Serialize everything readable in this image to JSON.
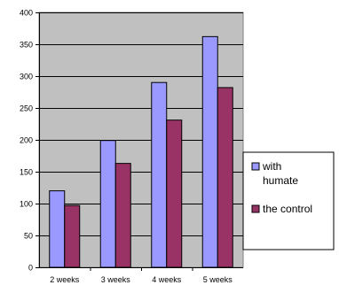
{
  "chart_data": {
    "type": "bar",
    "title": "",
    "xlabel": "",
    "ylabel": "",
    "categories": [
      "2 weeks",
      "3 weeks",
      "4 weeks",
      "5 weeks"
    ],
    "series": [
      {
        "name": "with humate",
        "name_lines": [
          "with",
          "humate"
        ],
        "values": [
          120,
          199,
          290,
          362
        ],
        "color": "#9999ff"
      },
      {
        "name": "the control",
        "name_lines": [
          "the control"
        ],
        "values": [
          97,
          163,
          231,
          282
        ],
        "color": "#993366"
      }
    ],
    "ylim": [
      0,
      400
    ],
    "yticks": [
      0,
      50,
      100,
      150,
      200,
      250,
      300,
      350,
      400
    ],
    "grid": true,
    "legend_position": "right",
    "plot_background": "#c0c0c0"
  }
}
